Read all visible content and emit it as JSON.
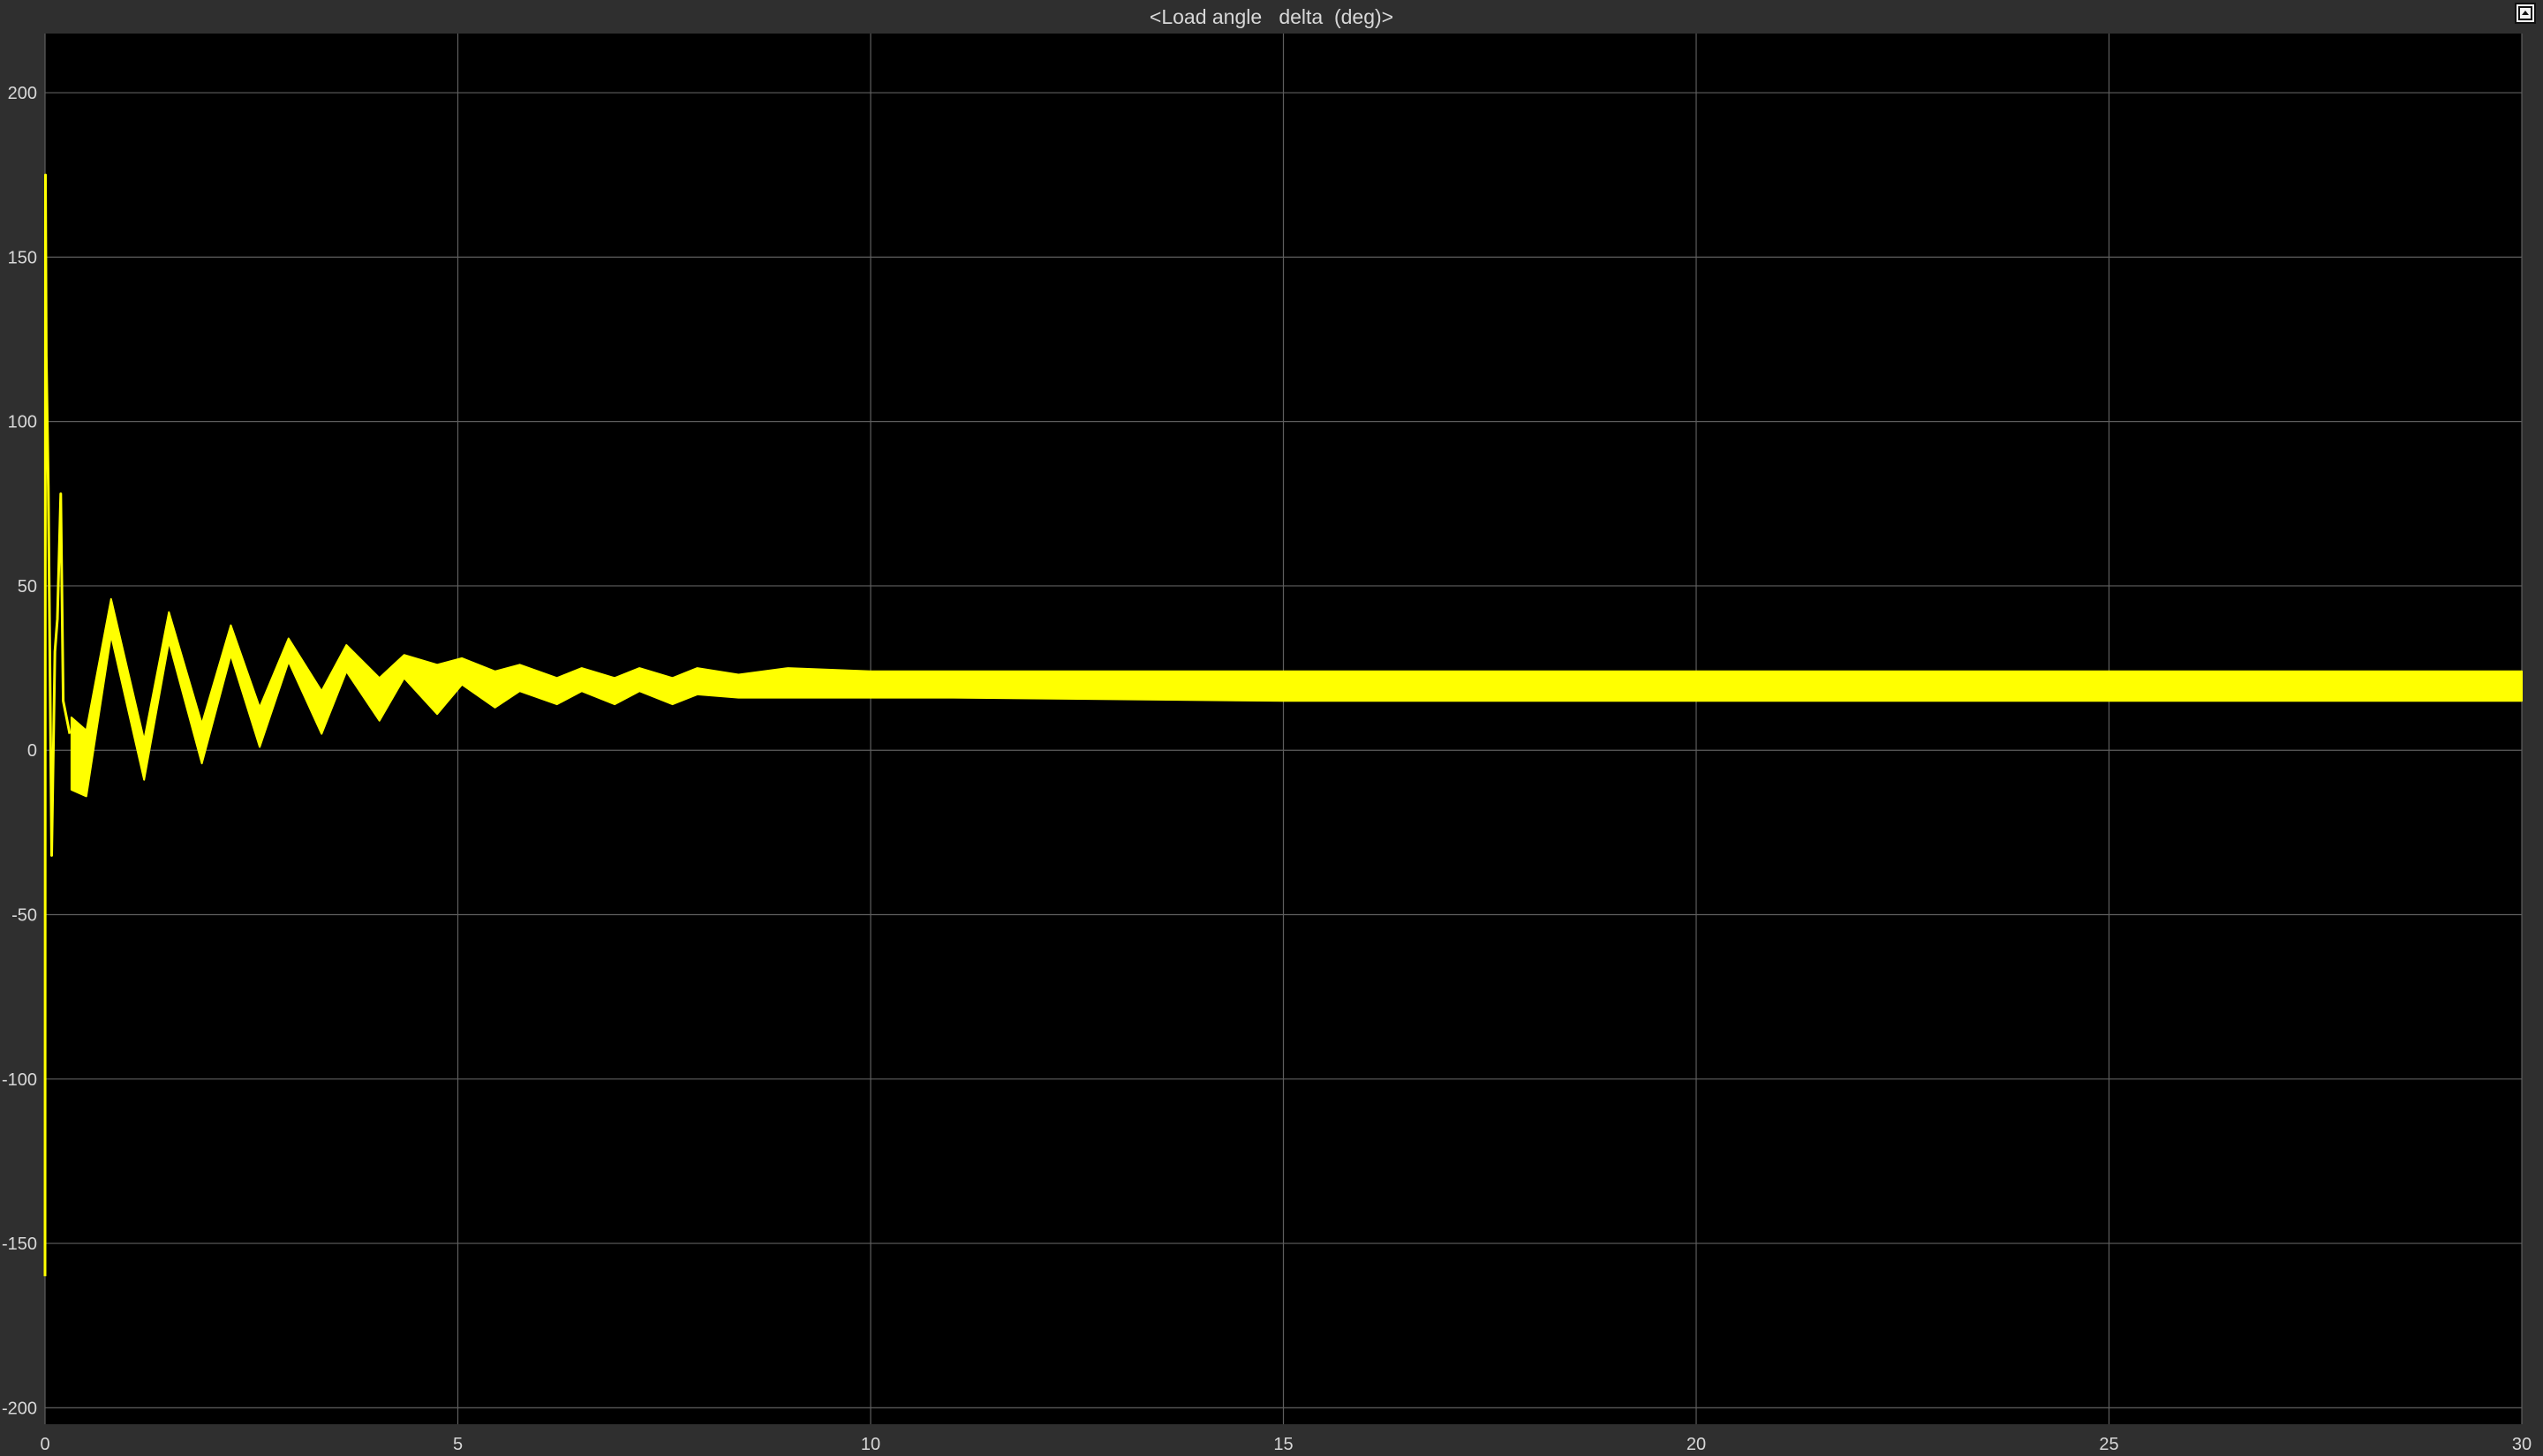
{
  "window": {
    "title": "<Load angle   delta  (deg)>"
  },
  "colors": {
    "background": "#000000",
    "frame": "#2f2f2f",
    "grid": "#5e5e5e",
    "text": "#d8d8d8",
    "series": "#ffff00"
  },
  "icons": {
    "restore": "restore-window-icon"
  },
  "chart_data": {
    "type": "line",
    "title": "<Load angle   delta  (deg)>",
    "xlabel": "",
    "ylabel": "",
    "xlim": [
      0,
      30
    ],
    "ylim": [
      -205,
      218
    ],
    "xticks": [
      0,
      5,
      10,
      15,
      20,
      25,
      30
    ],
    "yticks": [
      -200,
      -150,
      -100,
      -50,
      0,
      50,
      100,
      150,
      200
    ],
    "grid": true,
    "legend": "none",
    "series": [
      {
        "color": "#ffff00",
        "initial_transient": [
          {
            "x": 0.0,
            "y": -160
          },
          {
            "x": 0.005,
            "y": 175
          },
          {
            "x": 0.015,
            "y": 120
          },
          {
            "x": 0.04,
            "y": 80
          },
          {
            "x": 0.08,
            "y": -32
          },
          {
            "x": 0.12,
            "y": 30
          },
          {
            "x": 0.15,
            "y": 40
          },
          {
            "x": 0.19,
            "y": 78
          },
          {
            "x": 0.22,
            "y": 15
          },
          {
            "x": 0.3,
            "y": 5
          }
        ],
        "envelope": {
          "x": [
            0.32,
            0.5,
            0.8,
            1.2,
            1.5,
            1.9,
            2.25,
            2.6,
            2.95,
            3.35,
            3.65,
            4.05,
            4.35,
            4.75,
            5.05,
            5.45,
            5.75,
            6.2,
            6.5,
            6.9,
            7.2,
            7.6,
            7.9,
            8.4,
            9.0,
            10.0,
            11.0,
            15.0,
            18.3,
            20.0,
            22.0,
            25.0,
            30.0
          ],
          "upper": [
            10,
            6,
            46,
            3,
            42,
            8,
            38,
            13,
            34,
            18,
            32,
            22,
            29,
            26,
            28,
            24,
            26,
            22,
            25,
            22,
            25,
            22,
            25,
            23,
            25,
            24,
            24,
            24,
            24,
            24,
            24,
            24,
            24
          ],
          "lower": [
            -12,
            -14,
            35,
            -9,
            33,
            -4,
            29,
            1,
            27,
            5,
            24,
            9,
            22,
            11,
            20,
            13,
            18,
            14,
            18,
            14,
            18,
            14,
            17,
            16,
            16,
            16,
            16,
            15,
            15,
            15,
            15,
            15,
            15
          ]
        }
      }
    ]
  }
}
